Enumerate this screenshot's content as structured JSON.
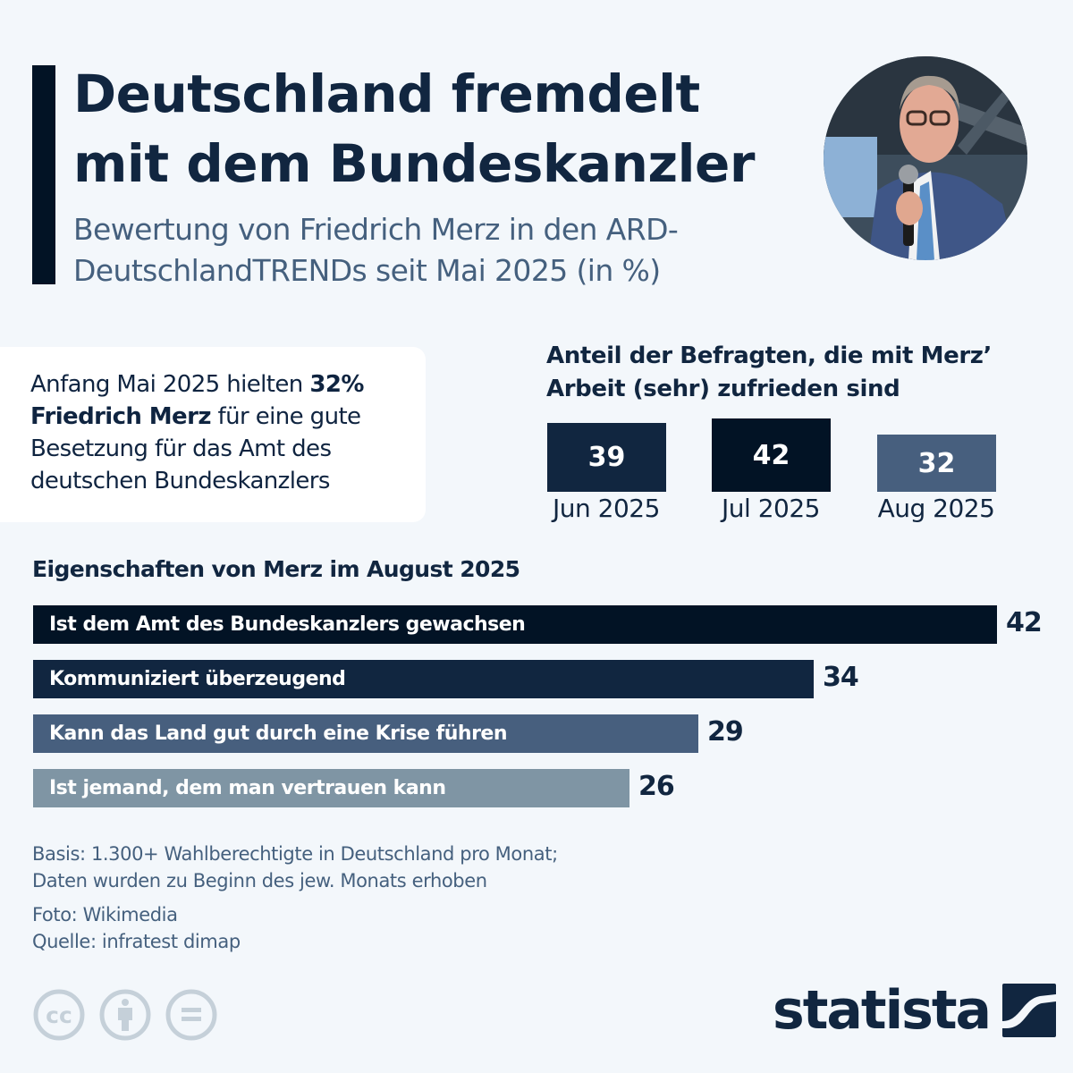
{
  "header": {
    "title": "Deutschland fremdelt mit dem Bundeskanzler",
    "subtitle": "Bewertung von Friedrich Merz in den ARD-DeutschlandTRENDs seit Mai 2025 (in %)",
    "photo_alt": "Friedrich Merz mit Mikrofon"
  },
  "info_box": {
    "text_before": "Anfang Mai 2025 hielten ",
    "highlight_value": "32%",
    "highlight_name": "Friedrich Merz",
    "text_after": " für eine gute Besetzung für das Amt des deutschen Bundeskanzlers"
  },
  "satisfaction": {
    "title": "Anteil der Befragten, die mit Merz’ Arbeit (sehr) zufrieden sind"
  },
  "bars_section": {
    "title": "Eigenschaften von Merz im August 2025"
  },
  "chart_data": [
    {
      "type": "bar",
      "title": "Anteil der Befragten, die mit Merz’ Arbeit (sehr) zufrieden sind",
      "categories": [
        "Jun 2025",
        "Jul 2025",
        "Aug 2025"
      ],
      "values": [
        39,
        42,
        32
      ],
      "colors": [
        "#112640",
        "#021325",
        "#475f7e"
      ],
      "unit": "%"
    },
    {
      "type": "bar",
      "orientation": "horizontal",
      "title": "Eigenschaften von Merz im August 2025",
      "categories": [
        "Ist dem Amt des Bundeskanzlers gewachsen",
        "Kommuniziert überzeugend",
        "Kann das Land gut durch eine Krise führen",
        "Ist jemand, dem man vertrauen kann"
      ],
      "values": [
        42,
        34,
        29,
        26
      ],
      "colors": [
        "#021325",
        "#112640",
        "#475f7e",
        "#7f95a4"
      ],
      "unit": "%",
      "xlim": [
        0,
        42
      ]
    }
  ],
  "footer": {
    "basis": "Basis: 1.300+ Wahlberechtigte in Deutschland pro Monat;",
    "basis2": "Daten wurden zu Beginn des jew. Monats erhoben",
    "photo_credit": "Foto: Wikimedia",
    "source": "Quelle: infratest dimap",
    "brand": "statista",
    "icon_color": "#c5d0d9"
  }
}
